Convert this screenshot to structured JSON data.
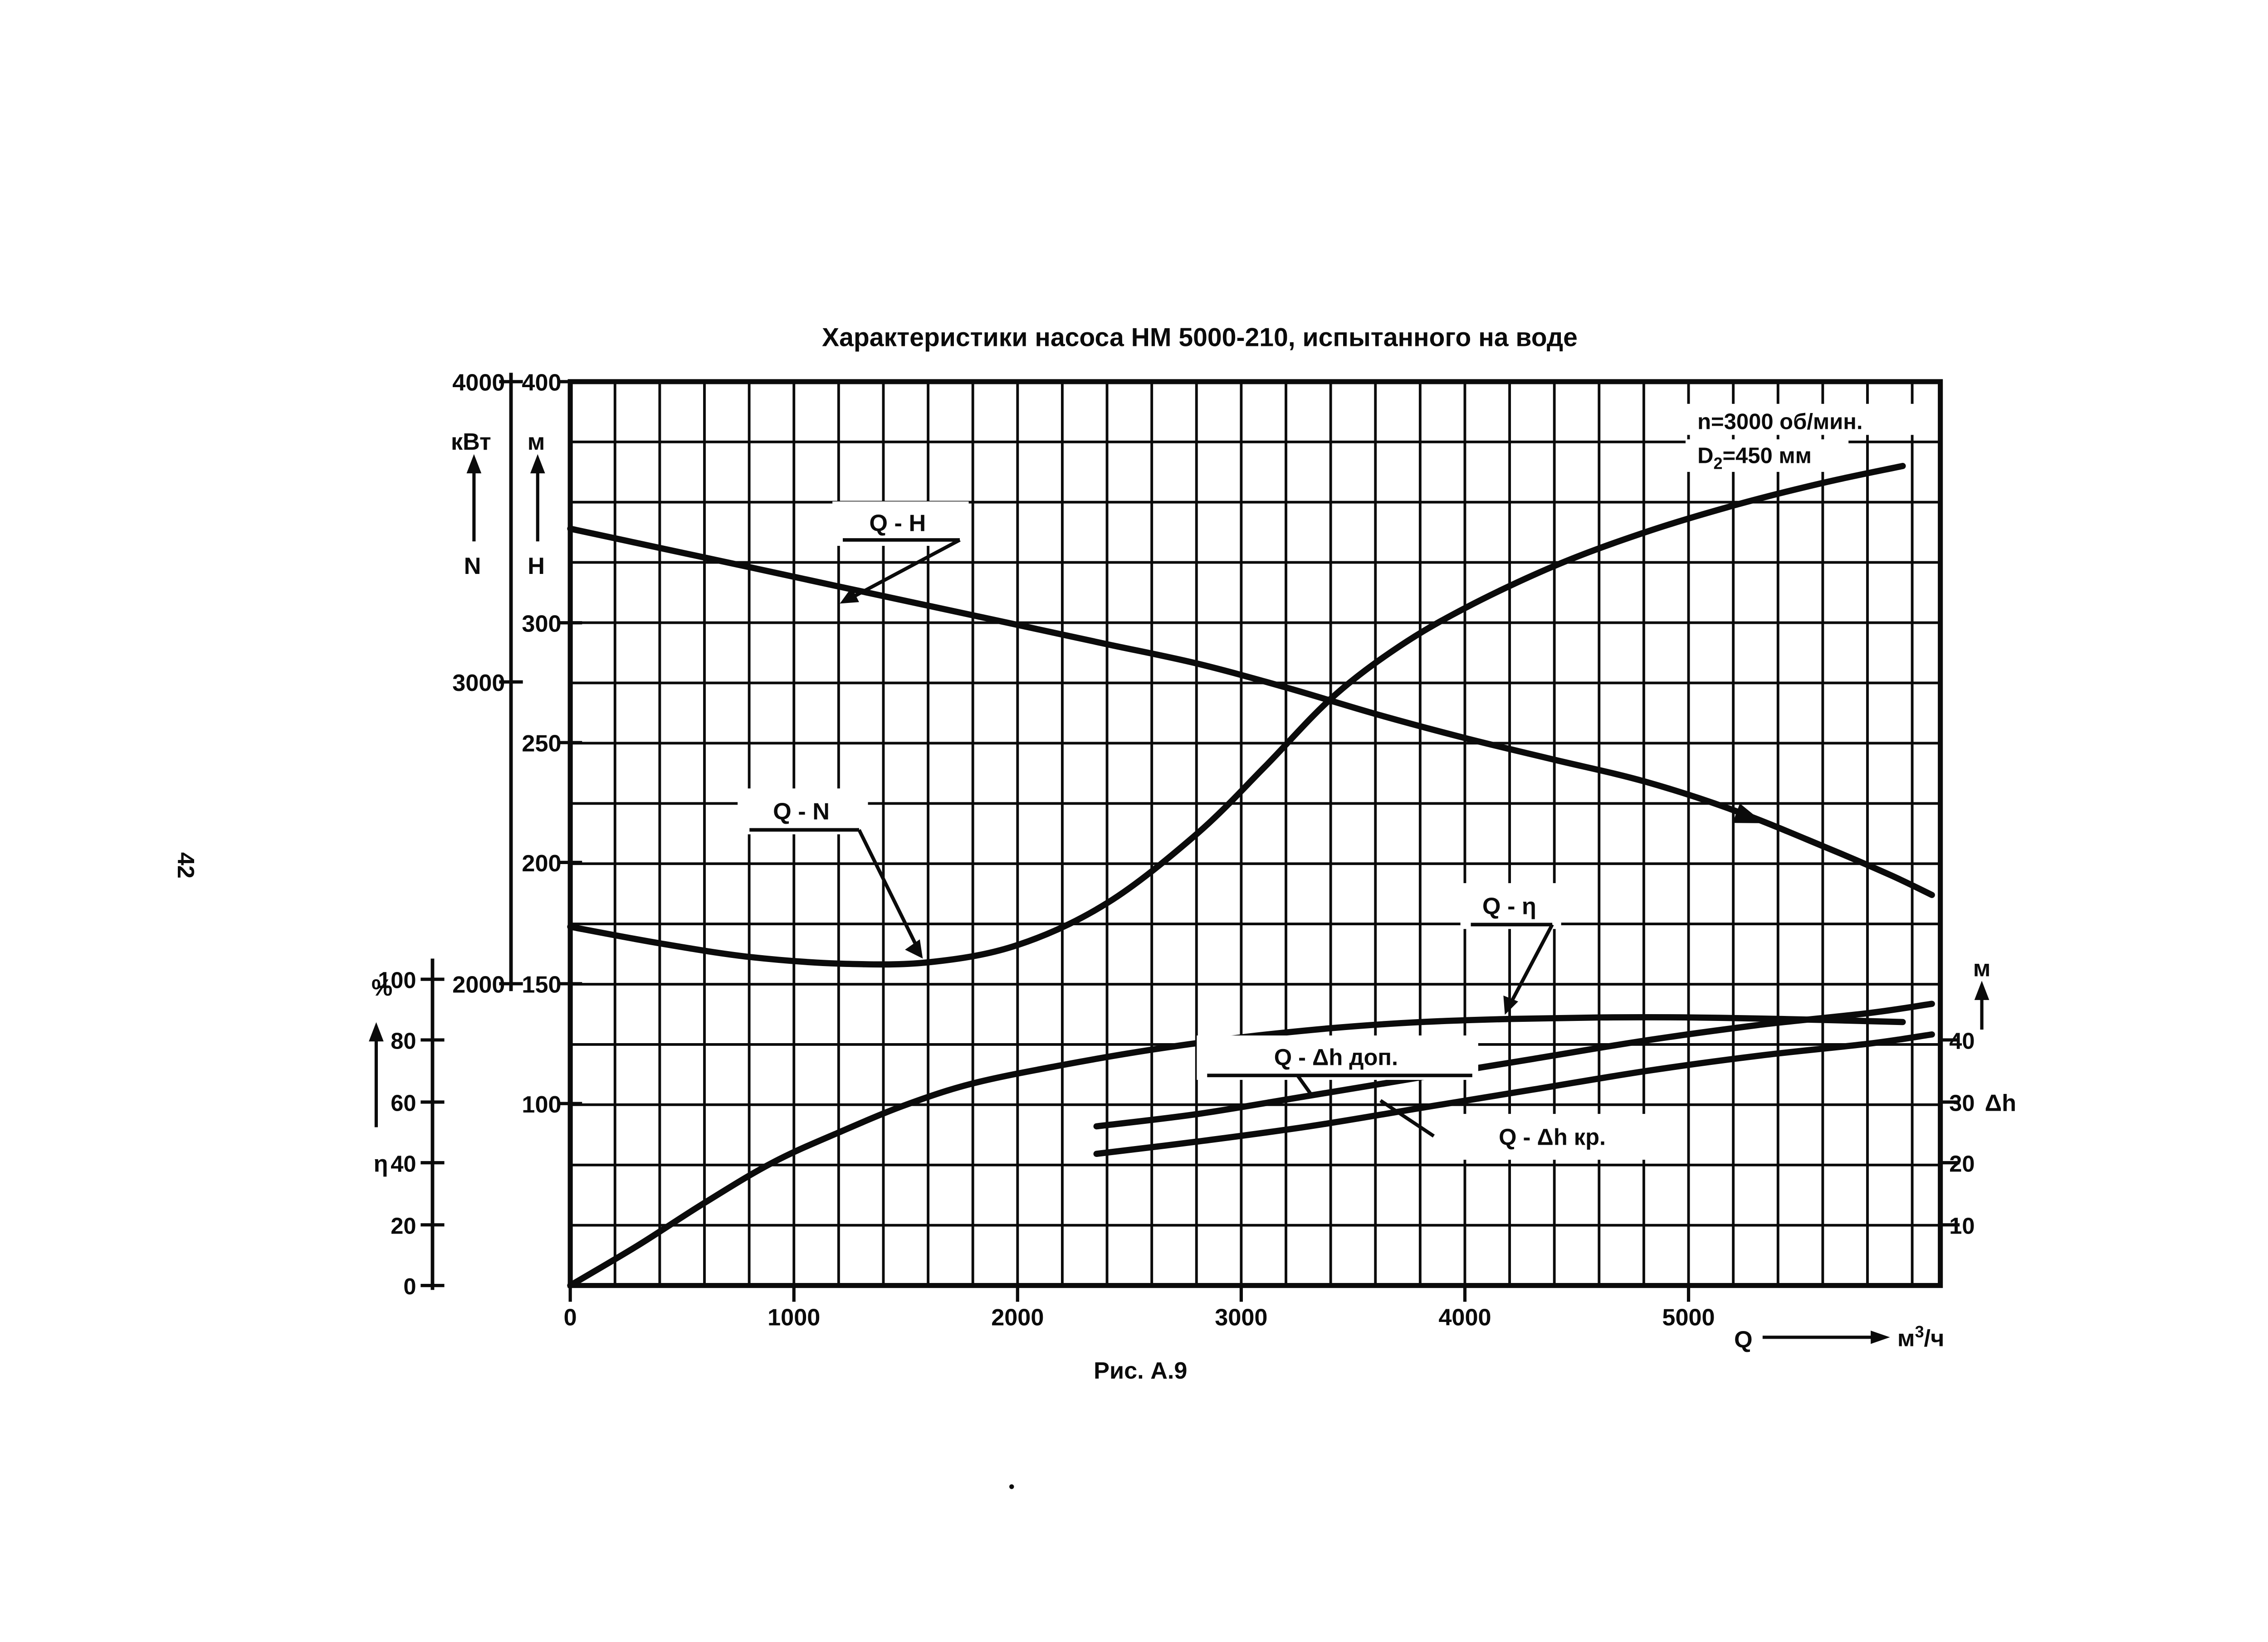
{
  "page_number": "42",
  "caption": "Рис. А.9",
  "conditions": {
    "line1": "n=3000 об/мин.",
    "d_prefix": "D",
    "d_sub": "2",
    "d_suffix": "=450 мм"
  },
  "flow_arrow": {
    "symbol": "Q",
    "unit_base": "м",
    "unit_sup": "3",
    "unit_rest": "/ч"
  },
  "curve_labels": {
    "qh": "Q - H",
    "qn": "Q - N",
    "qeta": "Q - η",
    "qdh_dop": "Q - Δh доп.",
    "qdh_kr": "Q - Δh кр."
  },
  "chart_data": {
    "type": "line",
    "title": "Характеристики насоса НМ 5000-210, испытанного на воде",
    "grid": "on",
    "annotations": [
      "n=3000 об/мин.",
      "D2=450 мм"
    ],
    "x": {
      "symbol": "Q",
      "units": "м3/ч",
      "ticks": [
        0,
        1000,
        2000,
        3000,
        4000,
        5000
      ],
      "range": [
        0,
        6100
      ]
    },
    "axes": {
      "power": {
        "symbol": "N",
        "units": "кВт",
        "ticks": [
          4000,
          3000,
          2000
        ],
        "arrow": "up",
        "range": [
          1980,
          4000
        ]
      },
      "head": {
        "symbol": "H",
        "units": "м",
        "ticks": [
          400,
          300,
          250,
          200,
          150,
          100
        ],
        "arrow": "up",
        "range": [
          25,
          400
        ]
      },
      "efficiency": {
        "symbol": "η",
        "units": "%",
        "ticks": [
          100,
          80,
          60,
          40,
          20,
          0
        ],
        "arrow": "up",
        "range": [
          0,
          100
        ]
      },
      "cavitation": {
        "symbol": "Δh",
        "units": "м",
        "ticks": [
          40,
          30,
          20,
          10
        ],
        "arrow": "up",
        "range": [
          0,
          49
        ]
      }
    },
    "series": [
      {
        "name": "Q - H",
        "axis": "head",
        "points": [
          [
            0,
            339
          ],
          [
            400,
            331
          ],
          [
            800,
            323
          ],
          [
            1200,
            315
          ],
          [
            1600,
            307
          ],
          [
            2000,
            299
          ],
          [
            2400,
            291
          ],
          [
            2800,
            283
          ],
          [
            3200,
            273
          ],
          [
            3600,
            262
          ],
          [
            4000,
            252
          ],
          [
            4400,
            243
          ],
          [
            4800,
            234
          ],
          [
            5200,
            222
          ],
          [
            5600,
            207
          ],
          [
            5900,
            195
          ],
          [
            6080,
            187
          ]
        ]
      },
      {
        "name": "Q - N",
        "axis": "power",
        "points": [
          [
            0,
            2190
          ],
          [
            400,
            2135
          ],
          [
            800,
            2090
          ],
          [
            1200,
            2068
          ],
          [
            1600,
            2072
          ],
          [
            2000,
            2130
          ],
          [
            2400,
            2270
          ],
          [
            2800,
            2500
          ],
          [
            3100,
            2720
          ],
          [
            3400,
            2950
          ],
          [
            3700,
            3120
          ],
          [
            4000,
            3250
          ],
          [
            4400,
            3390
          ],
          [
            4800,
            3500
          ],
          [
            5200,
            3590
          ],
          [
            5600,
            3665
          ],
          [
            5950,
            3720
          ]
        ]
      },
      {
        "name": "Q - η",
        "axis": "efficiency",
        "points": [
          [
            0,
            0
          ],
          [
            300,
            13
          ],
          [
            600,
            27
          ],
          [
            900,
            40
          ],
          [
            1200,
            50
          ],
          [
            1500,
            59
          ],
          [
            1800,
            66
          ],
          [
            2200,
            72
          ],
          [
            2600,
            77
          ],
          [
            3000,
            81
          ],
          [
            3400,
            84
          ],
          [
            3800,
            86
          ],
          [
            4200,
            87
          ],
          [
            4600,
            87.5
          ],
          [
            5000,
            87.5
          ],
          [
            5400,
            87
          ],
          [
            5950,
            86
          ]
        ]
      },
      {
        "name": "Q - Δh доп.",
        "axis": "cavitation",
        "points": [
          [
            2350,
            26
          ],
          [
            2800,
            28
          ],
          [
            3300,
            31
          ],
          [
            3800,
            34
          ],
          [
            4300,
            37
          ],
          [
            4800,
            40
          ],
          [
            5300,
            42.5
          ],
          [
            5800,
            44.5
          ],
          [
            6080,
            46
          ]
        ]
      },
      {
        "name": "Q - Δh кр.",
        "axis": "cavitation",
        "points": [
          [
            2350,
            21.5
          ],
          [
            2800,
            23.5
          ],
          [
            3300,
            26
          ],
          [
            3800,
            29
          ],
          [
            4300,
            32
          ],
          [
            4800,
            35
          ],
          [
            5300,
            37.5
          ],
          [
            5800,
            39.5
          ],
          [
            6080,
            41
          ]
        ]
      }
    ],
    "nominal_point_marker": {
      "series": "Q - H",
      "q": 5300
    }
  }
}
